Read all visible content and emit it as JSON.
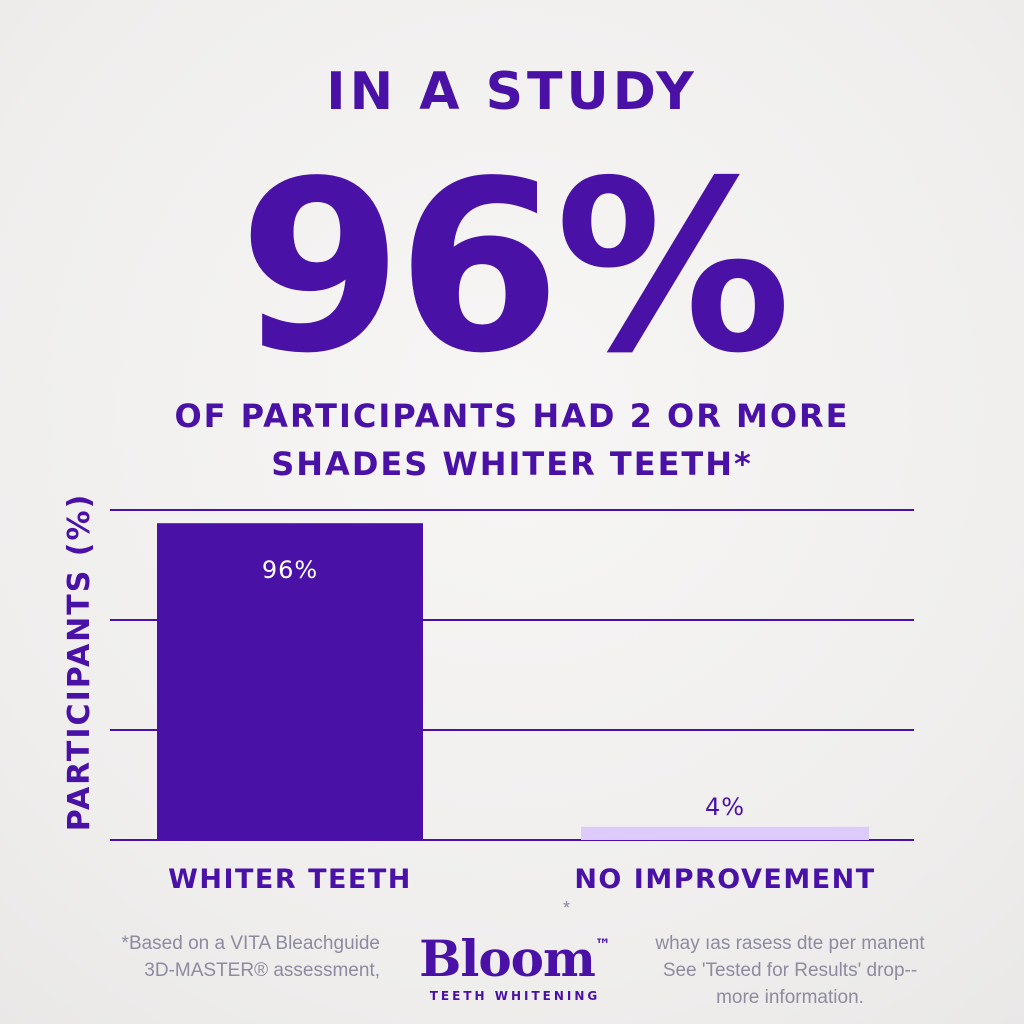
{
  "header": {
    "eyebrow": "IN A STUDY",
    "big_stat": "96%",
    "subtitle_line1": "OF PARTICIPANTS HAD 2 OR MORE",
    "subtitle_line2": "SHADES WHITER TEETH*"
  },
  "chart_data": {
    "type": "bar",
    "categories": [
      "WHITER TEETH",
      "NO IMPROVEMENT"
    ],
    "values": [
      96,
      4
    ],
    "data_labels": [
      "96%",
      "4%"
    ],
    "ylabel": "PARTICIPANTS (%)",
    "ylim": [
      0,
      100
    ],
    "grid": true,
    "colors": [
      "#4a11a6",
      "#dccbfb"
    ],
    "label_colors": [
      "#ffffff",
      "#4a11a6"
    ]
  },
  "colors": {
    "primary": "#4a11a6",
    "light_bar": "#dccbfb",
    "footnote": "#8e8aa0"
  },
  "footnotes": {
    "left_line1": "*Based on a VITA Bleachguide",
    "left_line2": "3D-MASTER® assessment,",
    "asterisk": "*",
    "right_line1": "whay ıas rasess dte per manent",
    "right_line2": "See 'Tested for Results' drop--",
    "right_line3": "more information."
  },
  "brand": {
    "name": "Bloom",
    "trademark": "™",
    "tagline": "TEETH WHITENING"
  }
}
